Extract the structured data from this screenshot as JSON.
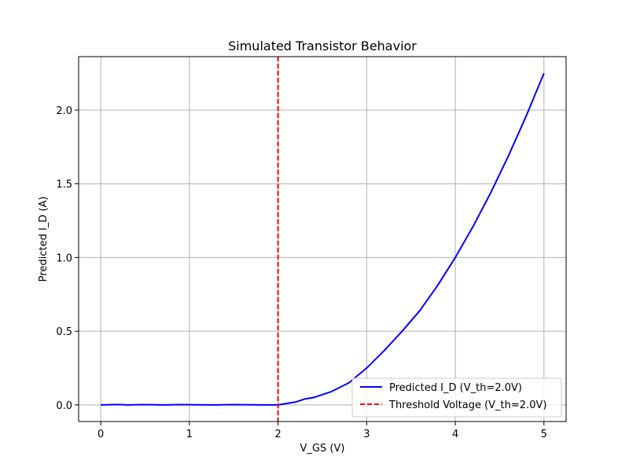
{
  "chart_data": {
    "type": "line",
    "title": "Simulated Transistor Behavior",
    "xlabel": "V_GS (V)",
    "ylabel": "Predicted I_D (A)",
    "xlim": [
      -0.25,
      5.25
    ],
    "ylim": [
      -0.1125,
      2.3625
    ],
    "xticks": [
      0,
      1,
      2,
      3,
      4,
      5
    ],
    "xtick_labels": [
      "0",
      "1",
      "2",
      "3",
      "4",
      "5"
    ],
    "yticks": [
      0.0,
      0.5,
      1.0,
      1.5,
      2.0
    ],
    "ytick_labels": [
      "0.0",
      "0.5",
      "1.0",
      "1.5",
      "2.0"
    ],
    "grid": true,
    "legend_position": "lower-right",
    "series": [
      {
        "name": "Predicted I_D (V_th=2.0V)",
        "color": "#0000ff",
        "style": "solid",
        "x": [
          0.0,
          0.2,
          0.3,
          0.5,
          0.7,
          0.9,
          1.1,
          1.3,
          1.5,
          1.7,
          1.9,
          2.0,
          2.1,
          2.2,
          2.3,
          2.4,
          2.5,
          2.6,
          2.7,
          2.8,
          2.9,
          3.0,
          3.2,
          3.4,
          3.6,
          3.8,
          4.0,
          4.2,
          4.4,
          4.6,
          4.8,
          5.0
        ],
        "y": [
          0.0,
          0.003,
          0.0,
          0.002,
          0.0,
          0.002,
          0.001,
          0.0,
          0.002,
          0.001,
          0.0,
          0.0,
          0.01,
          0.02,
          0.04,
          0.05,
          0.07,
          0.09,
          0.12,
          0.15,
          0.2,
          0.25,
          0.37,
          0.5,
          0.64,
          0.81,
          1.0,
          1.21,
          1.44,
          1.69,
          1.96,
          2.25
        ]
      }
    ],
    "vlines": [
      {
        "name": "Threshold Voltage (V_th=2.0V)",
        "x": 2.0,
        "color": "#ff0000",
        "style": "dashed"
      }
    ]
  }
}
